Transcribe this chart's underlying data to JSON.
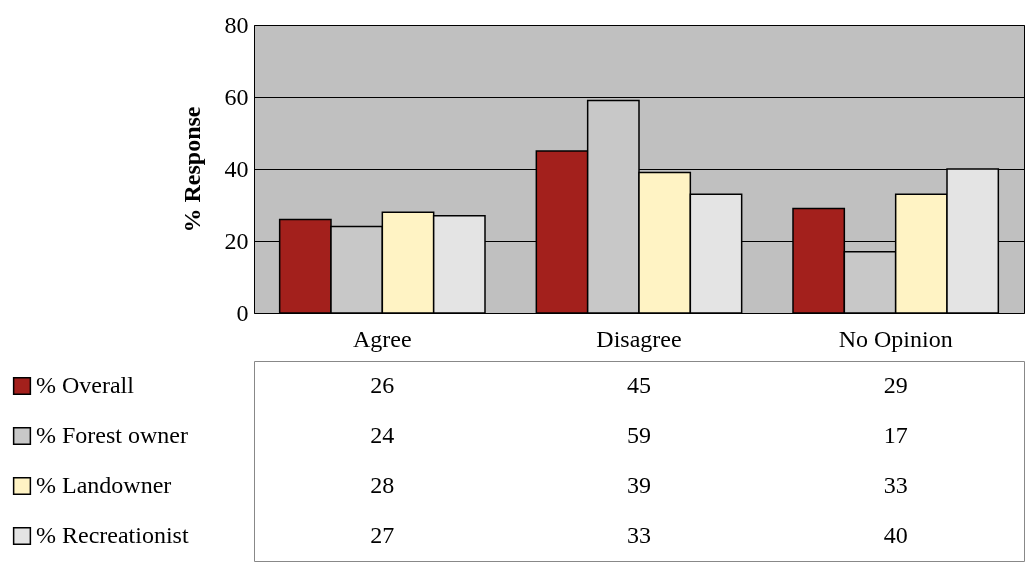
{
  "chart_data": {
    "type": "bar",
    "ylabel": "% Response",
    "categories": [
      "Agree",
      "Disagree",
      "No Opinion"
    ],
    "series": [
      {
        "name": "% Overall",
        "color": "#a3201c",
        "values": [
          26,
          45,
          29
        ]
      },
      {
        "name": "% Forest owner",
        "color": "#c8c8c8",
        "values": [
          24,
          59,
          17
        ]
      },
      {
        "name": "% Landowner",
        "color": "#fff3c4",
        "values": [
          28,
          39,
          33
        ]
      },
      {
        "name": "% Recreationist",
        "color": "#e4e4e4",
        "values": [
          27,
          33,
          40
        ]
      }
    ],
    "ylim": [
      0,
      80
    ],
    "yticks": [
      0,
      20,
      40,
      60,
      80
    ],
    "grid": "y",
    "legend": "bottom",
    "data_labels": true
  }
}
